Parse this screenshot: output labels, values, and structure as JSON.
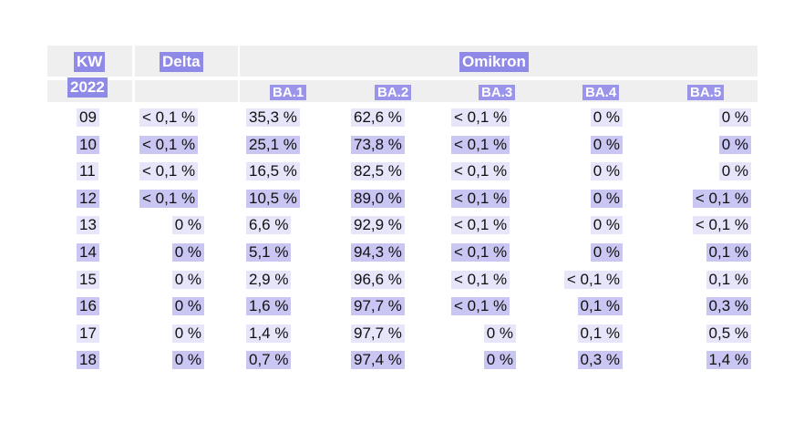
{
  "chart_data": {
    "type": "table",
    "header": {
      "kw": "KW",
      "year": "2022",
      "delta": "Delta",
      "omikron": "Omikron",
      "subvariants": [
        "BA.1",
        "BA.2",
        "BA.3",
        "BA.4",
        "BA.5"
      ]
    },
    "columns": [
      "KW",
      "Delta",
      "BA.1",
      "BA.2",
      "BA.3",
      "BA.4",
      "BA.5"
    ],
    "rows": [
      [
        "09",
        "< 0,1 %",
        "35,3 %",
        "62,6 %",
        "< 0,1 %",
        "0 %",
        "0 %"
      ],
      [
        "10",
        "< 0,1 %",
        "25,1 %",
        "73,8 %",
        "< 0,1 %",
        "0 %",
        "0 %"
      ],
      [
        "11",
        "< 0,1 %",
        "16,5 %",
        "82,5 %",
        "< 0,1 %",
        "0 %",
        "0 %"
      ],
      [
        "12",
        "< 0,1 %",
        "10,5 %",
        "89,0 %",
        "< 0,1 %",
        "0 %",
        "< 0,1 %"
      ],
      [
        "13",
        "0 %",
        "6,6 %",
        "92,9 %",
        "< 0,1 %",
        "0 %",
        "< 0,1 %"
      ],
      [
        "14",
        "0 %",
        "5,1 %",
        "94,3 %",
        "< 0,1 %",
        "0 %",
        "0,1 %"
      ],
      [
        "15",
        "0 %",
        "2,9 %",
        "96,6 %",
        "< 0,1 %",
        "< 0,1 %",
        "0,1 %"
      ],
      [
        "16",
        "0 %",
        "1,6 %",
        "97,7 %",
        "< 0,1 %",
        "0,1 %",
        "0,3 %"
      ],
      [
        "17",
        "0 %",
        "1,4 %",
        "97,7 %",
        "0 %",
        "0,1 %",
        "0,5 %"
      ],
      [
        "18",
        "0 %",
        "0,7 %",
        "97,4 %",
        "0 %",
        "0,3 %",
        "1,4 %"
      ]
    ]
  },
  "colors": {
    "header_highlight": "#8f89e8",
    "subheader_highlight": "#9a95ea",
    "row_highlight_strong": "#c9c6f3",
    "row_highlight_light": "#e6e5f9",
    "header_background": "#efefef"
  }
}
